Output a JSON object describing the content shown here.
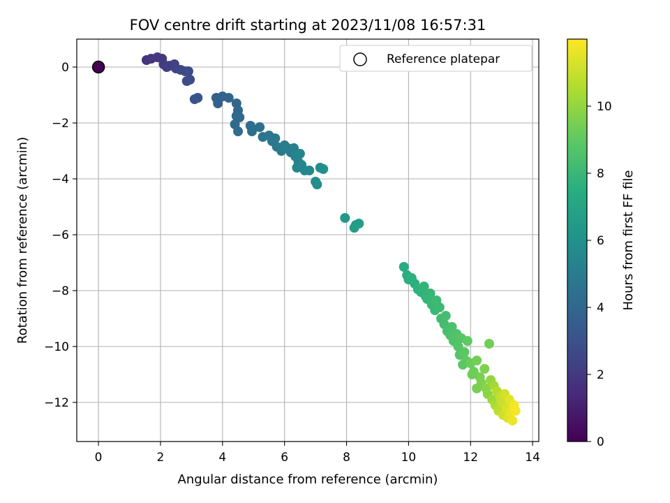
{
  "chart_data": {
    "type": "scatter",
    "title": "FOV centre drift starting at 2023/11/08 16:57:31",
    "xlabel": "Angular distance from reference (arcmin)",
    "ylabel": "Rotation from reference (arcmin)",
    "xlim": [
      -0.7,
      14.2
    ],
    "ylim": [
      -13.4,
      1.0
    ],
    "xticks": [
      0,
      2,
      4,
      6,
      8,
      10,
      12,
      14
    ],
    "yticks": [
      0,
      -2,
      -4,
      -6,
      -8,
      -10,
      -12
    ],
    "xtick_labels": [
      "0",
      "2",
      "4",
      "6",
      "8",
      "10",
      "12",
      "14"
    ],
    "ytick_labels": [
      "0",
      "−2",
      "−4",
      "−6",
      "−8",
      "−10",
      "−12"
    ],
    "grid": true,
    "legend": {
      "position": "top-right",
      "entries": [
        "Reference platepar"
      ]
    },
    "reference_point": {
      "x": 0.0,
      "y": 0.0
    },
    "colorbar": {
      "label": "Hours from first FF file",
      "colormap": "viridis",
      "range": [
        0,
        12
      ],
      "ticks": [
        0,
        2,
        4,
        6,
        8,
        10
      ],
      "tick_labels": [
        "0",
        "2",
        "4",
        "6",
        "8",
        "10"
      ]
    },
    "series": [
      {
        "points": [
          [
            1.55,
            0.25,
            1.8
          ],
          [
            1.7,
            0.3,
            1.9
          ],
          [
            1.9,
            0.35,
            2.0
          ],
          [
            2.05,
            0.3,
            2.0
          ],
          [
            2.1,
            0.1,
            2.1
          ],
          [
            2.2,
            0.0,
            2.2
          ],
          [
            2.3,
            0.05,
            2.2
          ],
          [
            2.45,
            0.1,
            2.3
          ],
          [
            2.5,
            -0.05,
            2.4
          ],
          [
            2.65,
            -0.1,
            2.5
          ],
          [
            2.8,
            -0.15,
            2.6
          ],
          [
            2.85,
            -0.5,
            2.7
          ],
          [
            2.95,
            -0.45,
            2.8
          ],
          [
            2.9,
            -0.15,
            2.7
          ],
          [
            3.1,
            -1.15,
            3.0
          ],
          [
            3.2,
            -1.1,
            3.1
          ],
          [
            3.8,
            -1.1,
            3.6
          ],
          [
            3.85,
            -1.3,
            3.7
          ],
          [
            4.0,
            -1.05,
            3.8
          ],
          [
            4.2,
            -1.1,
            3.9
          ],
          [
            4.45,
            -1.3,
            4.0
          ],
          [
            4.5,
            -1.55,
            4.0
          ],
          [
            4.45,
            -1.75,
            4.1
          ],
          [
            4.55,
            -1.8,
            4.1
          ],
          [
            4.4,
            -2.05,
            4.1
          ],
          [
            4.5,
            -2.3,
            4.2
          ],
          [
            4.9,
            -2.1,
            4.3
          ],
          [
            4.95,
            -2.3,
            4.4
          ],
          [
            5.2,
            -2.15,
            4.4
          ],
          [
            5.3,
            -2.5,
            4.6
          ],
          [
            5.5,
            -2.45,
            4.7
          ],
          [
            5.6,
            -2.65,
            4.8
          ],
          [
            5.7,
            -2.55,
            4.8
          ],
          [
            5.75,
            -2.85,
            4.9
          ],
          [
            5.9,
            -3.0,
            5.0
          ],
          [
            6.0,
            -2.8,
            5.0
          ],
          [
            6.1,
            -2.9,
            5.1
          ],
          [
            6.2,
            -3.05,
            5.1
          ],
          [
            6.3,
            -2.9,
            5.2
          ],
          [
            6.35,
            -3.2,
            5.3
          ],
          [
            6.45,
            -3.4,
            5.3
          ],
          [
            6.5,
            -3.1,
            5.4
          ],
          [
            6.4,
            -3.6,
            5.4
          ],
          [
            6.55,
            -3.5,
            5.5
          ],
          [
            6.65,
            -3.7,
            5.5
          ],
          [
            6.8,
            -3.7,
            5.6
          ],
          [
            7.0,
            -4.1,
            5.8
          ],
          [
            7.05,
            -4.2,
            5.8
          ],
          [
            7.15,
            -3.6,
            5.9
          ],
          [
            7.25,
            -3.65,
            5.9
          ],
          [
            7.95,
            -5.4,
            6.4
          ],
          [
            8.3,
            -5.65,
            6.6
          ],
          [
            8.4,
            -5.6,
            6.6
          ],
          [
            8.25,
            -5.75,
            6.6
          ],
          [
            9.85,
            -7.15,
            7.4
          ],
          [
            9.95,
            -7.45,
            7.5
          ],
          [
            10.0,
            -7.6,
            7.5
          ],
          [
            10.1,
            -7.55,
            7.6
          ],
          [
            10.2,
            -7.75,
            7.6
          ],
          [
            10.3,
            -7.95,
            7.7
          ],
          [
            10.4,
            -8.05,
            7.7
          ],
          [
            10.5,
            -7.85,
            7.8
          ],
          [
            10.55,
            -8.2,
            7.8
          ],
          [
            10.6,
            -8.3,
            7.9
          ],
          [
            10.7,
            -8.1,
            7.9
          ],
          [
            10.75,
            -8.5,
            8.0
          ],
          [
            10.85,
            -8.7,
            8.0
          ],
          [
            10.9,
            -8.35,
            8.1
          ],
          [
            11.0,
            -8.6,
            8.1
          ],
          [
            11.05,
            -9.0,
            8.2
          ],
          [
            11.15,
            -9.2,
            8.3
          ],
          [
            11.2,
            -8.9,
            8.3
          ],
          [
            11.25,
            -9.45,
            8.4
          ],
          [
            11.35,
            -9.6,
            8.5
          ],
          [
            11.4,
            -9.3,
            8.5
          ],
          [
            11.45,
            -9.8,
            8.6
          ],
          [
            11.55,
            -9.55,
            8.6
          ],
          [
            11.6,
            -10.0,
            8.7
          ],
          [
            11.65,
            -10.3,
            8.8
          ],
          [
            11.7,
            -9.7,
            8.8
          ],
          [
            11.8,
            -10.2,
            8.9
          ],
          [
            11.85,
            -10.5,
            9.0
          ],
          [
            11.75,
            -10.65,
            8.9
          ],
          [
            11.9,
            -9.8,
            9.0
          ],
          [
            12.0,
            -10.6,
            9.2
          ],
          [
            12.1,
            -10.9,
            9.3
          ],
          [
            12.2,
            -10.5,
            9.4
          ],
          [
            12.3,
            -11.1,
            9.5
          ],
          [
            12.35,
            -11.3,
            9.6
          ],
          [
            12.45,
            -10.8,
            9.6
          ],
          [
            12.5,
            -11.5,
            9.8
          ],
          [
            12.55,
            -11.7,
            9.9
          ],
          [
            12.6,
            -9.9,
            9.4
          ],
          [
            12.65,
            -11.2,
            10.0
          ],
          [
            12.7,
            -11.9,
            10.2
          ],
          [
            12.75,
            -11.4,
            10.3
          ],
          [
            12.8,
            -12.1,
            10.5
          ],
          [
            12.85,
            -11.6,
            10.6
          ],
          [
            12.9,
            -12.3,
            10.8
          ],
          [
            12.95,
            -11.8,
            10.9
          ],
          [
            13.0,
            -12.0,
            11.0
          ],
          [
            13.05,
            -12.45,
            11.1
          ],
          [
            13.1,
            -11.7,
            11.2
          ],
          [
            13.15,
            -12.2,
            11.3
          ],
          [
            13.2,
            -12.55,
            11.4
          ],
          [
            13.25,
            -11.9,
            11.5
          ],
          [
            13.3,
            -12.35,
            11.6
          ],
          [
            13.35,
            -12.65,
            11.7
          ],
          [
            13.4,
            -12.1,
            11.8
          ],
          [
            13.45,
            -12.3,
            11.9
          ],
          [
            12.2,
            -11.5,
            9.5
          ],
          [
            12.05,
            -11.0,
            9.3
          ]
        ]
      }
    ]
  }
}
